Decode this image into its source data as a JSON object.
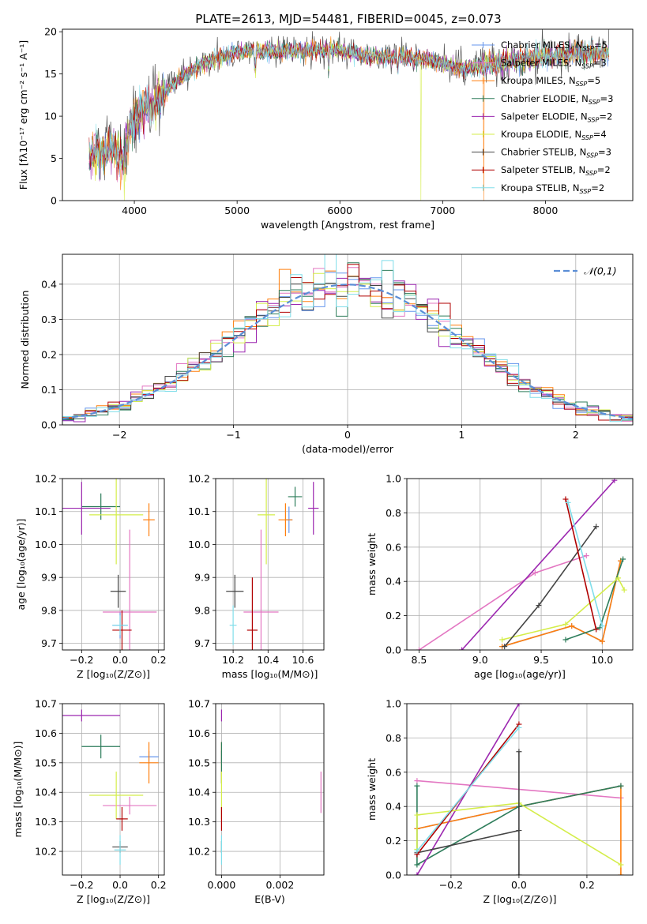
{
  "title": "PLATE=2613, MJD=54481, FIBERID=0045, z=0.073",
  "series_legend": [
    {
      "name": "Chabrier MILES",
      "nssp": "5",
      "color": "#6495ed"
    },
    {
      "name": "Salpeter MILES",
      "nssp": "3",
      "color": "#e377c2"
    },
    {
      "name": "Kroupa MILES",
      "nssp": "5",
      "color": "#ff7f0e"
    },
    {
      "name": "Chabrier ELODIE",
      "nssp": "3",
      "color": "#2e7d5b"
    },
    {
      "name": "Salpeter ELODIE",
      "nssp": "2",
      "color": "#9c27b0"
    },
    {
      "name": "Kroupa ELODIE",
      "nssp": "4",
      "color": "#d4ed4a"
    },
    {
      "name": "Chabrier STELIB",
      "nssp": "3",
      "color": "#444444"
    },
    {
      "name": "Salpeter STELIB",
      "nssp": "2",
      "color": "#b00000"
    },
    {
      "name": "Kroupa STELIB",
      "nssp": "2",
      "color": "#80deea"
    }
  ],
  "chart_data": [
    {
      "type": "line",
      "name": "spectrum",
      "xlabel": "wavelength [Angstrom, rest frame]",
      "ylabel": "Flux [fλ10⁻¹⁷ erg cm⁻² s⁻¹ A⁻¹]",
      "xlim": [
        3300,
        8850
      ],
      "ylim": [
        0,
        20.3
      ],
      "xticks": [
        4000,
        5000,
        6000,
        7000,
        8000
      ],
      "yticks": [
        0,
        5,
        10,
        15,
        20
      ],
      "continuum": {
        "x": [
          3560,
          3700,
          3800,
          3900,
          3950,
          4050,
          4200,
          4400,
          4600,
          4800,
          5000,
          5200,
          5400,
          5600,
          5800,
          6000,
          6200,
          6400,
          6600,
          6800,
          7000,
          7200,
          7400,
          7600,
          7800,
          8000,
          8200,
          8400,
          8600
        ],
        "y": [
          5.0,
          5.8,
          6.2,
          4.5,
          8.5,
          10.5,
          11.5,
          14.0,
          15.8,
          16.8,
          17.6,
          17.8,
          17.6,
          17.8,
          17.8,
          17.7,
          17.3,
          17.0,
          17.0,
          16.8,
          16.3,
          15.6,
          16.0,
          16.4,
          16.8,
          17.2,
          17.3,
          17.4,
          17.6
        ]
      }
    },
    {
      "type": "histogram",
      "name": "residuals",
      "xlabel": "(data-model)/error",
      "ylabel": "Normed distribution",
      "xlim": [
        -2.5,
        2.5
      ],
      "ylim": [
        0,
        0.485
      ],
      "xticks": [
        -2,
        -1,
        0,
        1,
        2
      ],
      "yticks": [
        0.0,
        0.1,
        0.2,
        0.3,
        0.4
      ],
      "bin_width": 0.1,
      "reference": {
        "name": "𝒩(0,1)",
        "color": "#5b8ed6"
      }
    },
    {
      "type": "scatter",
      "name": "age-vs-metallicity",
      "xlabel": "Z [log₁₀(Z/Z⊙)]",
      "ylabel": "age  [log₁₀(age/yr)]",
      "xlim": [
        -0.3,
        0.23
      ],
      "ylim": [
        9.68,
        10.2
      ],
      "xticks": [
        -0.2,
        0.0,
        0.2
      ],
      "yticks": [
        9.7,
        9.8,
        9.9,
        10.0,
        10.1,
        10.2
      ],
      "points": [
        {
          "series": 0,
          "x": 0.0,
          "y": 9.755,
          "xerr": 0.04,
          "yerr": 0.04
        },
        {
          "series": 1,
          "x": 0.05,
          "y": 9.795,
          "xerr": 0.14,
          "yerr": 0.25
        },
        {
          "series": 2,
          "x": 0.15,
          "y": 10.075,
          "xerr": 0.03,
          "yerr": 0.05
        },
        {
          "series": 3,
          "x": -0.1,
          "y": 10.115,
          "xerr": 0.1,
          "yerr": 0.04
        },
        {
          "series": 4,
          "x": -0.2,
          "y": 10.11,
          "xerr": 0.15,
          "yerr": 0.08
        },
        {
          "series": 5,
          "x": -0.02,
          "y": 10.09,
          "xerr": 0.14,
          "yerr": 0.15
        },
        {
          "series": 6,
          "x": -0.01,
          "y": 9.858,
          "xerr": 0.04,
          "yerr": 0.05
        },
        {
          "series": 7,
          "x": 0.01,
          "y": 9.74,
          "xerr": 0.05,
          "yerr": 0.06
        },
        {
          "series": 8,
          "x": 0.0,
          "y": 9.755,
          "xerr": 0.04,
          "yerr": 0.03
        }
      ]
    },
    {
      "type": "scatter",
      "name": "age-vs-mass",
      "xlabel": "mass [log₁₀(M/M⊙)]",
      "ylabel": "",
      "xlim": [
        10.1,
        10.72
      ],
      "ylim": [
        9.68,
        10.2
      ],
      "xticks": [
        10.2,
        10.4,
        10.6
      ],
      "yticks": [
        9.7,
        9.8,
        9.9,
        10.0,
        10.1,
        10.2
      ],
      "points": [
        {
          "series": 0,
          "x": 10.52,
          "y": 10.075,
          "xerr": 0.02,
          "yerr": 0.04
        },
        {
          "series": 1,
          "x": 10.36,
          "y": 9.795,
          "xerr": 0.1,
          "yerr": 0.25
        },
        {
          "series": 2,
          "x": 10.5,
          "y": 10.075,
          "xerr": 0.04,
          "yerr": 0.05
        },
        {
          "series": 3,
          "x": 10.555,
          "y": 10.145,
          "xerr": 0.04,
          "yerr": 0.03
        },
        {
          "series": 4,
          "x": 10.66,
          "y": 10.11,
          "xerr": 0.03,
          "yerr": 0.08
        },
        {
          "series": 5,
          "x": 10.39,
          "y": 10.09,
          "xerr": 0.05,
          "yerr": 0.15
        },
        {
          "series": 6,
          "x": 10.21,
          "y": 9.858,
          "xerr": 0.05,
          "yerr": 0.05
        },
        {
          "series": 7,
          "x": 10.31,
          "y": 9.74,
          "xerr": 0.03,
          "yerr": 0.16
        },
        {
          "series": 8,
          "x": 10.2,
          "y": 9.755,
          "xerr": 0.02,
          "yerr": 0.06
        }
      ]
    },
    {
      "type": "line",
      "name": "mass-weight-vs-age",
      "xlabel": "age  [log₁₀(age/yr)]",
      "ylabel": "mass weight",
      "xlim": [
        8.4,
        10.25
      ],
      "ylim": [
        0,
        1.0
      ],
      "xticks": [
        8.5,
        9.0,
        9.5,
        10.0
      ],
      "yticks": [
        0.0,
        0.2,
        0.4,
        0.6,
        0.8,
        1.0
      ],
      "lines": [
        {
          "series": 0,
          "x": [
            9.18,
            9.75,
            10.0,
            10.15
          ],
          "y": [
            0.02,
            0.14,
            0.05,
            0.52
          ]
        },
        {
          "series": 1,
          "x": [
            8.5,
            9.45,
            9.87
          ],
          "y": [
            0.0,
            0.45,
            0.55
          ]
        },
        {
          "series": 2,
          "x": [
            9.18,
            9.75,
            10.0,
            10.15
          ],
          "y": [
            0.02,
            0.14,
            0.05,
            0.52
          ]
        },
        {
          "series": 3,
          "x": [
            9.7,
            9.98,
            10.17
          ],
          "y": [
            0.06,
            0.13,
            0.53
          ]
        },
        {
          "series": 4,
          "x": [
            8.85,
            10.1
          ],
          "y": [
            0.0,
            0.99
          ]
        },
        {
          "series": 5,
          "x": [
            9.18,
            9.7,
            10.13,
            10.18
          ],
          "y": [
            0.06,
            0.15,
            0.42,
            0.35
          ]
        },
        {
          "series": 6,
          "x": [
            9.2,
            9.48,
            9.95
          ],
          "y": [
            0.02,
            0.26,
            0.72
          ]
        },
        {
          "series": 7,
          "x": [
            9.7,
            9.95
          ],
          "y": [
            0.88,
            0.12
          ]
        },
        {
          "series": 8,
          "x": [
            9.72,
            10.0
          ],
          "y": [
            0.86,
            0.14
          ]
        }
      ]
    },
    {
      "type": "scatter",
      "name": "mass-vs-metallicity",
      "xlabel": "Z [log₁₀(Z/Z⊙)]",
      "ylabel": "mass [log₁₀(M/M⊙)]",
      "xlim": [
        -0.3,
        0.23
      ],
      "ylim": [
        10.12,
        10.7
      ],
      "xticks": [
        -0.2,
        0.0,
        0.2
      ],
      "yticks": [
        10.2,
        10.3,
        10.4,
        10.5,
        10.6,
        10.7
      ],
      "points": [
        {
          "series": 0,
          "x": 0.15,
          "y": 10.52,
          "xerr": 0.05,
          "yerr": 0.02
        },
        {
          "series": 1,
          "x": 0.05,
          "y": 10.355,
          "xerr": 0.14,
          "yerr": 0.03
        },
        {
          "series": 2,
          "x": 0.15,
          "y": 10.5,
          "xerr": 0.05,
          "yerr": 0.07
        },
        {
          "series": 3,
          "x": -0.1,
          "y": 10.555,
          "xerr": 0.1,
          "yerr": 0.04
        },
        {
          "series": 4,
          "x": -0.2,
          "y": 10.66,
          "xerr": 0.2,
          "yerr": 0.02
        },
        {
          "series": 5,
          "x": -0.02,
          "y": 10.39,
          "xerr": 0.14,
          "yerr": 0.08
        },
        {
          "series": 6,
          "x": 0.0,
          "y": 10.215,
          "xerr": 0.04,
          "yerr": 0.02
        },
        {
          "series": 7,
          "x": 0.01,
          "y": 10.31,
          "xerr": 0.03,
          "yerr": 0.04
        },
        {
          "series": 8,
          "x": 0.0,
          "y": 10.205,
          "xerr": 0.03,
          "yerr": 0.05
        }
      ]
    },
    {
      "type": "scatter",
      "name": "mass-vs-ebv",
      "xlabel": "E(B-V)",
      "ylabel": "",
      "xlim": [
        -0.0002,
        0.0035
      ],
      "ylim": [
        10.12,
        10.7
      ],
      "xticks": [
        0.0,
        0.002
      ],
      "xtick_labels": [
        "0.000",
        "0.002"
      ],
      "yticks": [
        10.2,
        10.3,
        10.4,
        10.5,
        10.6,
        10.7
      ],
      "points": [
        {
          "series": 0,
          "x": 0.0,
          "y": 10.52,
          "xerr": 0,
          "yerr": 0.02
        },
        {
          "series": 1,
          "x": 0.0034,
          "y": 10.4,
          "xerr": 0,
          "yerr": 0.07
        },
        {
          "series": 2,
          "x": 0.0,
          "y": 10.5,
          "xerr": 0,
          "yerr": 0.07
        },
        {
          "series": 3,
          "x": 0.0,
          "y": 10.5,
          "xerr": 0,
          "yerr": 0.07
        },
        {
          "series": 4,
          "x": 0.0,
          "y": 10.66,
          "xerr": 0,
          "yerr": 0.02
        },
        {
          "series": 5,
          "x": 0.0,
          "y": 10.39,
          "xerr": 0,
          "yerr": 0.08
        },
        {
          "series": 6,
          "x": 0.0,
          "y": 10.215,
          "xerr": 0,
          "yerr": 0.02
        },
        {
          "series": 7,
          "x": 0.0,
          "y": 10.31,
          "xerr": 0,
          "yerr": 0.04
        },
        {
          "series": 8,
          "x": 0.0,
          "y": 10.205,
          "xerr": 0,
          "yerr": 0.05
        }
      ]
    },
    {
      "type": "line",
      "name": "mass-weight-vs-metallicity",
      "xlabel": "Z [log₁₀(Z/Z⊙)]",
      "ylabel": "mass weight",
      "xlim": [
        -0.33,
        0.335
      ],
      "ylim": [
        0,
        1.0
      ],
      "xticks": [
        -0.2,
        0.0,
        0.2
      ],
      "yticks": [
        0.0,
        0.2,
        0.4,
        0.6,
        0.8,
        1.0
      ],
      "lines": [
        {
          "series": 0,
          "x": [
            -0.3,
            0.0,
            0.3
          ],
          "y": [
            0.27,
            0.4,
            0.52
          ]
        },
        {
          "series": 1,
          "x": [
            -0.3,
            0.3
          ],
          "y": [
            0.55,
            0.45
          ]
        },
        {
          "series": 2,
          "x": [
            -0.3,
            0.0,
            0.3,
            0.3
          ],
          "y": [
            0.27,
            0.4,
            0.52,
            0.0
          ]
        },
        {
          "series": 3,
          "x": [
            -0.3,
            -0.3,
            0.0,
            0.3
          ],
          "y": [
            0.52,
            0.06,
            0.4,
            0.52
          ]
        },
        {
          "series": 4,
          "x": [
            -0.3,
            0.0
          ],
          "y": [
            0.0,
            1.0
          ]
        },
        {
          "series": 5,
          "x": [
            -0.3,
            -0.3,
            0.0,
            0.3
          ],
          "y": [
            0.15,
            0.35,
            0.42,
            0.06
          ]
        },
        {
          "series": 6,
          "x": [
            -0.3,
            0.0,
            0.0,
            0.0
          ],
          "y": [
            0.13,
            0.26,
            0.0,
            0.72
          ]
        },
        {
          "series": 7,
          "x": [
            -0.3,
            0.0
          ],
          "y": [
            0.12,
            0.88
          ]
        },
        {
          "series": 8,
          "x": [
            -0.3,
            0.0
          ],
          "y": [
            0.14,
            0.86
          ]
        }
      ]
    }
  ]
}
